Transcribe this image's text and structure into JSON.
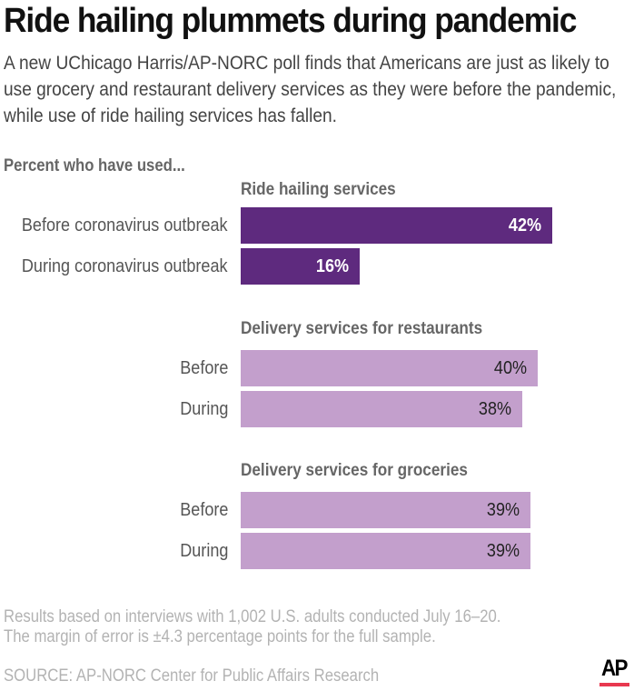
{
  "header": {
    "title": "Ride hailing plummets during pandemic",
    "subtitle": "A new UChicago Harris/AP-NORC poll finds that Americans are just as likely to use grocery and restaurant delivery services as they were before the pandemic, while use of ride hailing services has fallen."
  },
  "colors": {
    "ride_bar": "#5e2a7e",
    "delivery_bar": "#c39fcc",
    "ride_label": "#ffffff",
    "delivery_label": "#222222",
    "ap_red": "#e8384f"
  },
  "chart_data": {
    "type": "bar",
    "orientation": "horizontal",
    "title": "Ride hailing plummets during pandemic",
    "subtitle": "Percent who have used...",
    "xlim": [
      0,
      100
    ],
    "unit": "%",
    "groups": [
      {
        "name": "Ride hailing services",
        "categories": [
          "Before coronavirus outbreak",
          "During coronavirus outbreak"
        ],
        "values": [
          42,
          16
        ],
        "labels": [
          "42%",
          "16%"
        ],
        "color_key": "ride"
      },
      {
        "name": "Delivery services for restaurants",
        "categories": [
          "Before",
          "During"
        ],
        "values": [
          40,
          38
        ],
        "labels": [
          "40%",
          "38%"
        ],
        "color_key": "delivery"
      },
      {
        "name": "Delivery services for groceries",
        "categories": [
          "Before",
          "During"
        ],
        "values": [
          39,
          39
        ],
        "labels": [
          "39%",
          "39%"
        ],
        "color_key": "delivery"
      }
    ]
  },
  "chart": {
    "section_label": "Percent who have used..."
  },
  "footer": {
    "note_line1": "Results based on interviews with 1,002 U.S. adults conducted July 16–20.",
    "note_line2": "The margin of error is ±4.3 percentage points for the full sample.",
    "source": "SOURCE: AP-NORC Center for Public Affairs Research",
    "logo_text": "AP"
  }
}
